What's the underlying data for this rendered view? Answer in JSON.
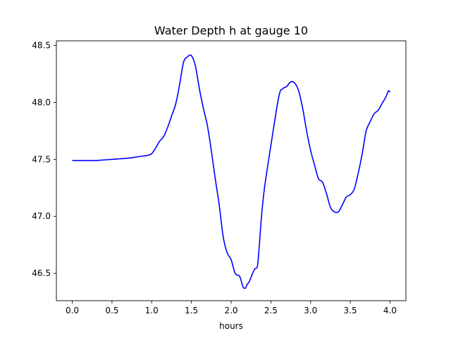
{
  "chart_data": {
    "type": "line",
    "title": "Water Depth h at gauge 10",
    "xlabel": "hours",
    "ylabel": "",
    "xlim": [
      -0.2,
      4.2
    ],
    "ylim": [
      46.26,
      48.54
    ],
    "xticks": [
      0.0,
      0.5,
      1.0,
      1.5,
      2.0,
      2.5,
      3.0,
      3.5,
      4.0
    ],
    "xtick_labels": [
      "0.0",
      "0.5",
      "1.0",
      "1.5",
      "2.0",
      "2.5",
      "3.0",
      "3.5",
      "4.0"
    ],
    "yticks": [
      46.5,
      47.0,
      47.5,
      48.0,
      48.5
    ],
    "ytick_labels": [
      "46.5",
      "47.0",
      "47.5",
      "48.0",
      "48.5"
    ],
    "grid": false,
    "series": [
      {
        "color": "#0000ff",
        "x": [
          0.0,
          0.1,
          0.2,
          0.3,
          0.4,
          0.5,
          0.6,
          0.7,
          0.8,
          0.9,
          0.95,
          1.0,
          1.05,
          1.1,
          1.15,
          1.2,
          1.25,
          1.3,
          1.35,
          1.4,
          1.45,
          1.5,
          1.55,
          1.6,
          1.65,
          1.7,
          1.75,
          1.8,
          1.85,
          1.9,
          1.95,
          2.0,
          2.05,
          2.1,
          2.12,
          2.15,
          2.18,
          2.2,
          2.23,
          2.27,
          2.3,
          2.33,
          2.35,
          2.38,
          2.42,
          2.5,
          2.6,
          2.65,
          2.7,
          2.75,
          2.8,
          2.85,
          2.9,
          2.95,
          3.0,
          3.05,
          3.1,
          3.15,
          3.2,
          3.25,
          3.3,
          3.35,
          3.4,
          3.45,
          3.5,
          3.55,
          3.6,
          3.65,
          3.7,
          3.75,
          3.8,
          3.85,
          3.9,
          3.95,
          3.98,
          4.0
        ],
        "y": [
          47.49,
          47.49,
          47.49,
          47.49,
          47.495,
          47.5,
          47.505,
          47.51,
          47.52,
          47.53,
          47.535,
          47.55,
          47.6,
          47.66,
          47.7,
          47.78,
          47.88,
          47.98,
          48.15,
          48.35,
          48.4,
          48.41,
          48.32,
          48.12,
          47.95,
          47.8,
          47.58,
          47.33,
          47.1,
          46.82,
          46.68,
          46.62,
          46.5,
          46.48,
          46.45,
          46.38,
          46.37,
          46.4,
          46.43,
          46.5,
          46.54,
          46.56,
          46.7,
          46.98,
          47.25,
          47.62,
          48.05,
          48.12,
          48.14,
          48.18,
          48.17,
          48.1,
          47.95,
          47.75,
          47.58,
          47.45,
          47.33,
          47.3,
          47.2,
          47.08,
          47.04,
          47.04,
          47.1,
          47.17,
          47.19,
          47.24,
          47.38,
          47.55,
          47.75,
          47.83,
          47.9,
          47.93,
          47.99,
          48.05,
          48.1,
          48.09
        ]
      }
    ]
  }
}
